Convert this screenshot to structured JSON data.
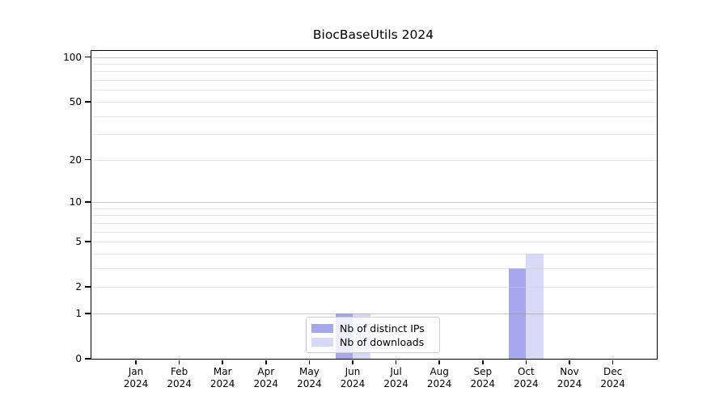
{
  "title": "BiocBaseUtils 2024",
  "colors": {
    "distinct_ips": "#a7a7f0",
    "downloads": "#d8d8f7",
    "grid_major": "#c8c8c8",
    "grid_minor": "#e9e9e9",
    "spine": "#000000",
    "legend_border": "#cccccc"
  },
  "legend": {
    "items": [
      {
        "label": "Nb of distinct IPs",
        "color": "#a7a7f0"
      },
      {
        "label": "Nb of downloads",
        "color": "#d8d8f7"
      }
    ]
  },
  "chart_data": {
    "type": "bar",
    "title": "BiocBaseUtils 2024",
    "categories": [
      "Jan",
      "Feb",
      "Mar",
      "Apr",
      "May",
      "Jun",
      "Jul",
      "Aug",
      "Sep",
      "Oct",
      "Nov",
      "Dec"
    ],
    "year": "2024",
    "series": [
      {
        "name": "Nb of distinct IPs",
        "key": "distinct-ips",
        "color": "#a7a7f0",
        "values": [
          0,
          0,
          0,
          0,
          0,
          1,
          0,
          0,
          0,
          3,
          0,
          0
        ]
      },
      {
        "name": "Nb of downloads",
        "key": "downloads",
        "color": "#d8d8f7",
        "values": [
          0,
          0,
          0,
          0,
          0,
          1,
          0,
          0,
          0,
          4,
          0,
          0
        ]
      }
    ],
    "xlabel": "",
    "ylabel": "",
    "yticks": [
      0,
      1,
      2,
      5,
      10,
      20,
      50,
      100
    ],
    "major_gridlines": [
      1,
      10,
      100
    ],
    "minor_gridlines": [
      2,
      3,
      4,
      5,
      6,
      7,
      8,
      9,
      20,
      30,
      40,
      50,
      60,
      70,
      80,
      90
    ],
    "ylim": [
      0,
      110
    ],
    "yscale": "log10(1+x)",
    "grid": true,
    "grid_above_bars": true,
    "legend_position": "bottom-center"
  }
}
